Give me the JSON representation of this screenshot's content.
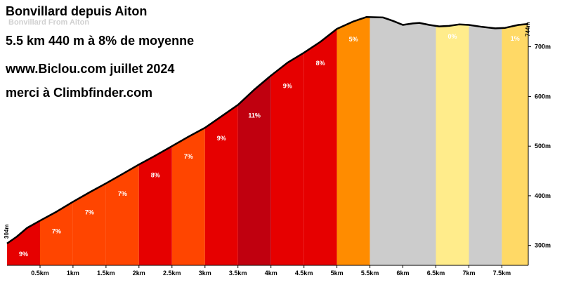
{
  "header": {
    "title": "Bonvillard depuis Aiton",
    "subtitle": "Bonvillard From Aiton",
    "stats": "5.5 km 440 m à 8% de moyenne",
    "site": "www.Biclou.com juillet 2024",
    "credit": "merci à Climbfinder.com"
  },
  "chart_data": {
    "type": "area",
    "title": "Bonvillard depuis Aiton",
    "x_unit": "km",
    "y_unit": "m",
    "xlim": [
      0,
      7.9
    ],
    "ylim": [
      260,
      780
    ],
    "x_ticks": [
      0.5,
      1,
      1.5,
      2,
      2.5,
      3,
      3.5,
      4,
      4.5,
      5,
      5.5,
      6,
      6.5,
      7,
      7.5
    ],
    "x_tick_labels": [
      "0.5km",
      "1km",
      "1.5km",
      "2km",
      "2.5km",
      "3km",
      "3.5km",
      "4km",
      "4.5km",
      "5km",
      "5.5km",
      "6km",
      "6.5km",
      "7km",
      "7.5km"
    ],
    "y_ticks": [
      300,
      400,
      500,
      600,
      700
    ],
    "y_tick_labels": [
      "300m",
      "400m",
      "500m",
      "600m",
      "700m"
    ],
    "start_altitude_label": "304m",
    "end_altitude_label": "744m",
    "profile": [
      {
        "x": 0,
        "y": 304
      },
      {
        "x": 0.15,
        "y": 318
      },
      {
        "x": 0.3,
        "y": 335
      },
      {
        "x": 0.5,
        "y": 350
      },
      {
        "x": 0.75,
        "y": 368
      },
      {
        "x": 1.0,
        "y": 388
      },
      {
        "x": 1.25,
        "y": 407
      },
      {
        "x": 1.5,
        "y": 425
      },
      {
        "x": 1.75,
        "y": 444
      },
      {
        "x": 2.0,
        "y": 463
      },
      {
        "x": 2.25,
        "y": 481
      },
      {
        "x": 2.5,
        "y": 500
      },
      {
        "x": 2.75,
        "y": 519
      },
      {
        "x": 3.0,
        "y": 537
      },
      {
        "x": 3.25,
        "y": 560
      },
      {
        "x": 3.5,
        "y": 583
      },
      {
        "x": 3.75,
        "y": 614
      },
      {
        "x": 4.0,
        "y": 642
      },
      {
        "x": 4.25,
        "y": 668
      },
      {
        "x": 4.5,
        "y": 688
      },
      {
        "x": 4.75,
        "y": 710
      },
      {
        "x": 5.0,
        "y": 736
      },
      {
        "x": 5.25,
        "y": 751
      },
      {
        "x": 5.45,
        "y": 760
      },
      {
        "x": 5.7,
        "y": 759
      },
      {
        "x": 5.85,
        "y": 752
      },
      {
        "x": 6.0,
        "y": 744
      },
      {
        "x": 6.15,
        "y": 747
      },
      {
        "x": 6.25,
        "y": 748
      },
      {
        "x": 6.4,
        "y": 744
      },
      {
        "x": 6.55,
        "y": 741
      },
      {
        "x": 6.7,
        "y": 742
      },
      {
        "x": 6.85,
        "y": 745
      },
      {
        "x": 7.0,
        "y": 744
      },
      {
        "x": 7.2,
        "y": 740
      },
      {
        "x": 7.4,
        "y": 737
      },
      {
        "x": 7.55,
        "y": 738
      },
      {
        "x": 7.75,
        "y": 744
      },
      {
        "x": 7.9,
        "y": 746
      }
    ],
    "segments": [
      {
        "x0": 0.0,
        "x1": 0.5,
        "gradient": "9%",
        "color": "#e60000"
      },
      {
        "x0": 0.5,
        "x1": 1.0,
        "gradient": "7%",
        "color": "#ff4500"
      },
      {
        "x0": 1.0,
        "x1": 1.5,
        "gradient": "7%",
        "color": "#ff4500"
      },
      {
        "x0": 1.5,
        "x1": 2.0,
        "gradient": "7%",
        "color": "#ff4500"
      },
      {
        "x0": 2.0,
        "x1": 2.5,
        "gradient": "8%",
        "color": "#e60000"
      },
      {
        "x0": 2.5,
        "x1": 3.0,
        "gradient": "7%",
        "color": "#ff4500"
      },
      {
        "x0": 3.0,
        "x1": 3.5,
        "gradient": "9%",
        "color": "#e60000"
      },
      {
        "x0": 3.5,
        "x1": 4.0,
        "gradient": "11%",
        "color": "#c0000f"
      },
      {
        "x0": 4.0,
        "x1": 4.5,
        "gradient": "9%",
        "color": "#e60000"
      },
      {
        "x0": 4.5,
        "x1": 5.0,
        "gradient": "8%",
        "color": "#e60000"
      },
      {
        "x0": 5.0,
        "x1": 5.5,
        "gradient": "5%",
        "color": "#ff8c00"
      },
      {
        "x0": 5.5,
        "x1": 6.0,
        "gradient": "",
        "color": "#cccccc"
      },
      {
        "x0": 6.0,
        "x1": 6.5,
        "gradient": "",
        "color": "#cccccc"
      },
      {
        "x0": 6.5,
        "x1": 7.0,
        "gradient": "0%",
        "color": "#ffec8b"
      },
      {
        "x0": 7.0,
        "x1": 7.5,
        "gradient": "",
        "color": "#cccccc"
      },
      {
        "x0": 7.5,
        "x1": 7.9,
        "gradient": "1%",
        "color": "#ffd966"
      }
    ],
    "grid": false,
    "legend": "none"
  }
}
